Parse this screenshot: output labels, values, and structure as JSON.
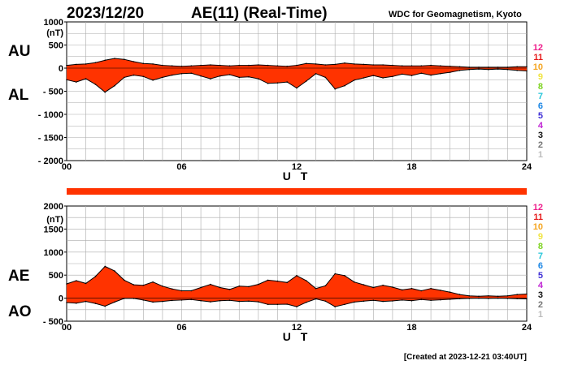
{
  "header": {
    "date": "2023/12/20",
    "title": "AE(11) (Real-Time)",
    "source": "WDC for Geomagnetism, Kyoto"
  },
  "footer": {
    "created": "[Created at 2023-12-21 03:40UT]"
  },
  "legend_levels": [
    {
      "label": "12",
      "color": "#ee1f8c"
    },
    {
      "label": "11",
      "color": "#e61a1a"
    },
    {
      "label": "10",
      "color": "#f5a623"
    },
    {
      "label": "9",
      "color": "#f0e442"
    },
    {
      "label": "8",
      "color": "#7ed321"
    },
    {
      "label": "7",
      "color": "#26c6da"
    },
    {
      "label": "6",
      "color": "#1e88e5"
    },
    {
      "label": "5",
      "color": "#3f2fd6"
    },
    {
      "label": "4",
      "color": "#c026d3"
    },
    {
      "label": "3",
      "color": "#111111"
    },
    {
      "label": "2",
      "color": "#777777"
    },
    {
      "label": "1",
      "color": "#bbbbbb"
    }
  ],
  "chart_data": [
    {
      "type": "area",
      "panel": "AU/AL",
      "series_labels": [
        "AU",
        "AL"
      ],
      "ylabel": "(nT)",
      "xlabel": "U T",
      "xlim": [
        0,
        24
      ],
      "ylim": [
        -2000,
        1000
      ],
      "x_ticks": [
        "00",
        "06",
        "12",
        "18",
        "24"
      ],
      "y_ticks": [
        "1000",
        "500",
        "0",
        "- 500",
        "- 1000",
        "- 1500",
        "- 2000"
      ],
      "y_tick_values": [
        1000,
        500,
        0,
        -500,
        -1000,
        -1500,
        -2000
      ],
      "fill_color": "#ff3300",
      "grid": true,
      "x": [
        0,
        0.5,
        1,
        1.5,
        2,
        2.5,
        3,
        3.5,
        4,
        4.5,
        5,
        5.5,
        6,
        6.5,
        7,
        7.5,
        8,
        8.5,
        9,
        9.5,
        10,
        10.5,
        11,
        11.5,
        12,
        12.5,
        13,
        13.5,
        14,
        14.5,
        15,
        15.5,
        16,
        16.5,
        17,
        17.5,
        18,
        18.5,
        19,
        19.5,
        20,
        20.5,
        21,
        21.5,
        22,
        22.5,
        23,
        23.5,
        24
      ],
      "series": [
        {
          "name": "AU",
          "values": [
            60,
            80,
            90,
            120,
            170,
            210,
            190,
            140,
            100,
            90,
            60,
            50,
            40,
            50,
            60,
            70,
            60,
            50,
            60,
            60,
            70,
            60,
            50,
            40,
            60,
            100,
            90,
            70,
            80,
            110,
            90,
            80,
            70,
            70,
            60,
            50,
            50,
            50,
            60,
            50,
            40,
            30,
            20,
            20,
            20,
            20,
            20,
            30,
            30
          ]
        },
        {
          "name": "AL",
          "values": [
            -250,
            -300,
            -230,
            -350,
            -520,
            -380,
            -200,
            -150,
            -180,
            -260,
            -200,
            -150,
            -120,
            -110,
            -170,
            -230,
            -170,
            -140,
            -200,
            -190,
            -230,
            -330,
            -320,
            -300,
            -430,
            -280,
            -120,
            -200,
            -450,
            -380,
            -260,
            -210,
            -160,
            -210,
            -180,
            -130,
            -160,
            -110,
            -150,
            -120,
            -90,
            -50,
            -30,
            -20,
            -30,
            -20,
            -30,
            -50,
            -60
          ]
        }
      ]
    },
    {
      "type": "area",
      "panel": "AE/AO",
      "series_labels": [
        "AE",
        "AO"
      ],
      "ylabel": "(nT)",
      "xlabel": "U T",
      "xlim": [
        0,
        24
      ],
      "ylim": [
        -500,
        2000
      ],
      "x_ticks": [
        "00",
        "06",
        "12",
        "18",
        "24"
      ],
      "y_ticks": [
        "2000",
        "1500",
        "1000",
        "500",
        "0",
        "- 500"
      ],
      "y_tick_values": [
        2000,
        1500,
        1000,
        500,
        0,
        -500
      ],
      "fill_color": "#ff3300",
      "grid": true,
      "x": [
        0,
        0.5,
        1,
        1.5,
        2,
        2.5,
        3,
        3.5,
        4,
        4.5,
        5,
        5.5,
        6,
        6.5,
        7,
        7.5,
        8,
        8.5,
        9,
        9.5,
        10,
        10.5,
        11,
        11.5,
        12,
        12.5,
        13,
        13.5,
        14,
        14.5,
        15,
        15.5,
        16,
        16.5,
        17,
        17.5,
        18,
        18.5,
        19,
        19.5,
        20,
        20.5,
        21,
        21.5,
        22,
        22.5,
        23,
        23.5,
        24
      ],
      "series": [
        {
          "name": "AE",
          "values": [
            310,
            380,
            320,
            470,
            690,
            590,
            390,
            290,
            280,
            350,
            260,
            200,
            160,
            160,
            230,
            300,
            230,
            190,
            260,
            250,
            300,
            390,
            370,
            340,
            490,
            380,
            210,
            270,
            530,
            490,
            350,
            290,
            230,
            280,
            240,
            180,
            210,
            160,
            210,
            170,
            130,
            80,
            50,
            40,
            50,
            40,
            50,
            80,
            90
          ]
        },
        {
          "name": "AO",
          "values": [
            -95,
            -110,
            -70,
            -115,
            -175,
            -85,
            -5,
            -5,
            -40,
            -85,
            -70,
            -50,
            -40,
            -30,
            -55,
            -80,
            -55,
            -45,
            -70,
            -65,
            -80,
            -135,
            -135,
            -130,
            -185,
            -90,
            -15,
            -65,
            -185,
            -135,
            -85,
            -65,
            -45,
            -70,
            -60,
            -40,
            -55,
            -30,
            -45,
            -35,
            -25,
            -10,
            -5,
            0,
            -5,
            0,
            -5,
            -10,
            -15
          ]
        }
      ]
    }
  ]
}
